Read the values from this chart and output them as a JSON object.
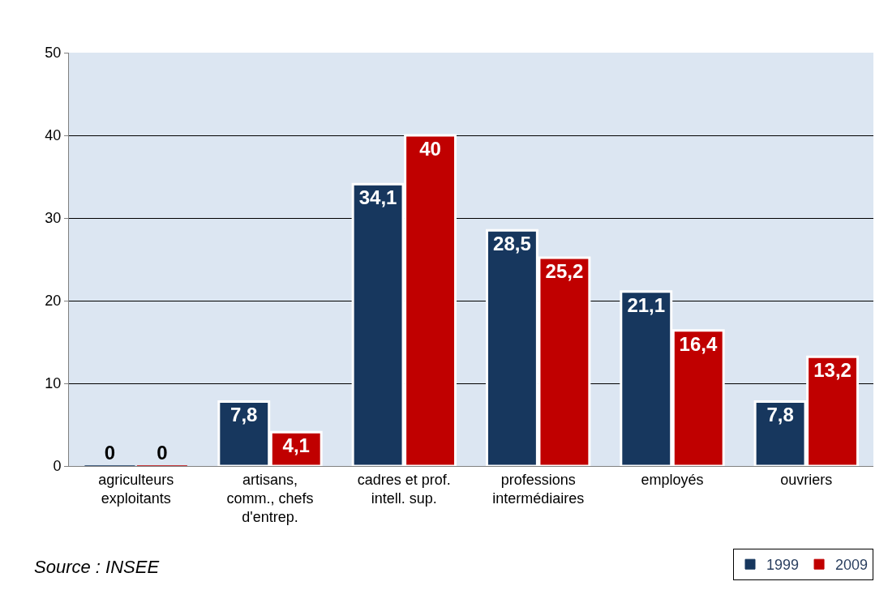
{
  "chart_data": {
    "type": "bar",
    "categories": [
      "agriculteurs\nexploitants",
      "artisans,\ncomm., chefs\nd'entrep.",
      "cadres et prof.\nintell. sup.",
      "professions\nintermédiaires",
      "employés",
      "ouvriers"
    ],
    "series": [
      {
        "name": "1999",
        "color": "#17375e",
        "values": [
          0,
          7.8,
          34.1,
          28.5,
          21.1,
          7.8
        ],
        "value_labels": [
          "0",
          "7,8",
          "34,1",
          "28,5",
          "21,1",
          "7,8"
        ]
      },
      {
        "name": "2009",
        "color": "#c00000",
        "values": [
          0,
          4.1,
          40,
          25.2,
          16.4,
          13.2
        ],
        "value_labels": [
          "0",
          "4,1",
          "40",
          "25,2",
          "16,4",
          "13,2"
        ]
      }
    ],
    "ylim": [
      0,
      50
    ],
    "yticks": [
      0,
      10,
      20,
      30,
      40,
      50
    ],
    "grid": "y",
    "legend": "bottom right",
    "annotations": [
      "Source : INSEE"
    ]
  }
}
